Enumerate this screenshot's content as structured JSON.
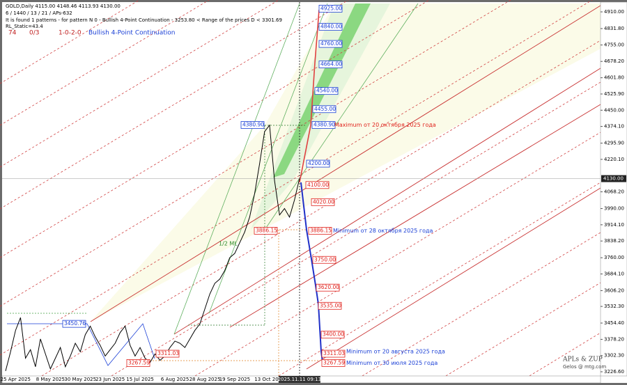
{
  "chart_data": {
    "type": "line",
    "title": "GOLD,Daily  4115.00 4148.46 4113.93 4130.00",
    "subtitle": "6 / 1440 / 13 / 21 / APs-632",
    "info_line": "It is found 1 patterns  -  for pattern N 0  -  Bullish 4-Point Continuation  -  3253.80 < Range of the prices D < 3301.69",
    "static_line": "RL_Static=43.4",
    "status": [
      "74",
      "0/3",
      "1-0-2-0",
      "Bullish 4-Point Continuation"
    ],
    "median_label": "1/2 ML",
    "watermark": [
      "APLs & ZUP",
      "Gelos @ mtg.com"
    ],
    "color": "#000000",
    "categories": [
      null,
      null,
      "25 Apr 2025",
      null,
      null,
      null,
      null,
      null,
      null,
      "8 May 2025",
      null,
      null,
      null,
      null,
      null,
      "30 May 2025",
      null,
      null,
      null,
      null,
      null,
      "23 Jun 2025",
      null,
      null,
      null,
      null,
      null,
      "15 Jul 2025",
      null,
      null,
      null,
      null,
      null,
      null,
      "6 Aug 2025",
      null,
      null,
      null,
      null,
      null,
      "28 Aug 2025",
      null,
      null,
      null,
      null,
      null,
      "19 Sep 2025",
      null,
      null,
      null,
      null,
      null,
      null,
      "13 Oct 2025",
      null,
      null,
      null,
      null,
      null,
      "2025.11.11 09:13"
    ],
    "values": [
      3230,
      3320,
      3420,
      3480,
      3290,
      3330,
      3250,
      3380,
      3310,
      3240,
      3290,
      3340,
      3250,
      3300,
      3360,
      3320,
      3400,
      3440,
      3390,
      3350,
      3300,
      3330,
      3360,
      3410,
      3440,
      3350,
      3300,
      3340,
      3290,
      3270,
      3310,
      3280,
      3300,
      3340,
      3370,
      3360,
      3340,
      3380,
      3420,
      3450,
      3520,
      3590,
      3640,
      3660,
      3700,
      3760,
      3780,
      3830,
      3880,
      3950,
      4060,
      4200,
      4350,
      4380,
      4120,
      3960,
      3990,
      3950,
      4030,
      4130
    ],
    "ylim": [
      3207,
      4955.7
    ],
    "yticks": [
      {
        "value": 4910,
        "label": "4910.00"
      },
      {
        "value": 4831.8,
        "label": "4831.80"
      },
      {
        "value": 4755,
        "label": "4755.00"
      },
      {
        "value": 4678.2,
        "label": "4678.20"
      },
      {
        "value": 4601.8,
        "label": "4601.80"
      },
      {
        "value": 4525.9,
        "label": "4525.90"
      },
      {
        "value": 4450,
        "label": "4450.00"
      },
      {
        "value": 4374.1,
        "label": "4374.10"
      },
      {
        "value": 4295.9,
        "label": "4295.90"
      },
      {
        "value": 4220.1,
        "label": "4220.10"
      },
      {
        "value": 4068.2,
        "label": "4068.20"
      },
      {
        "value": 3990,
        "label": "3990.00"
      },
      {
        "value": 3914.1,
        "label": "3914.10"
      },
      {
        "value": 3838.2,
        "label": "3838.20"
      },
      {
        "value": 3760,
        "label": "3760.00"
      },
      {
        "value": 3684.1,
        "label": "3684.10"
      },
      {
        "value": 3606.2,
        "label": "3606.20"
      },
      {
        "value": 3532.3,
        "label": "3532.30"
      },
      {
        "value": 3454.4,
        "label": "3454.40"
      },
      {
        "value": 3378.2,
        "label": "3378.20"
      },
      {
        "value": 3302.3,
        "label": "3302.30"
      },
      {
        "value": 3226.6,
        "label": "3226.60"
      }
    ],
    "last_price": {
      "value": 4130,
      "label": "4130.00"
    },
    "levels": [
      {
        "value": 4925,
        "label": "4925.00",
        "color": "#1a3fd6"
      },
      {
        "value": 4840,
        "label": "4840.00",
        "color": "#1a3fd6"
      },
      {
        "value": 4760,
        "label": "4760.00",
        "color": "#1a3fd6"
      },
      {
        "value": 4664,
        "label": "4664.00",
        "color": "#1a3fd6"
      },
      {
        "value": 4540,
        "label": "4540.00",
        "color": "#1a3fd6"
      },
      {
        "value": 4455,
        "label": "4455.00",
        "color": "#1a3fd6"
      },
      {
        "value": 4380.9,
        "label": "4380.90",
        "color": "#1a3fd6"
      },
      {
        "value": 4200,
        "label": "4200.00",
        "color": "#1a3fd6"
      },
      {
        "value": 4380.9,
        "label": "4380.90",
        "color": "#1a3fd6"
      },
      {
        "value": 4100,
        "label": "4100.00",
        "color": "#e0201a"
      },
      {
        "value": 4020,
        "label": "4020.00",
        "color": "#e0201a"
      },
      {
        "value": 3886.15,
        "label": "3886.15",
        "color": "#e0201a"
      },
      {
        "value": 3886.15,
        "label": "3886.15",
        "color": "#e0201a"
      },
      {
        "value": 3750,
        "label": "3750.00",
        "color": "#e0201a"
      },
      {
        "value": 3620,
        "label": "3620.00",
        "color": "#e0201a"
      },
      {
        "value": 3535,
        "label": "3535.00",
        "color": "#e0201a"
      },
      {
        "value": 3400,
        "label": "3400.00",
        "color": "#e0201a"
      },
      {
        "value": 3311.03,
        "label": "3311.03",
        "color": "#e0201a"
      },
      {
        "value": 3267.59,
        "label": "3267.59",
        "color": "#e0201a"
      },
      {
        "value": 3450.76,
        "label": "3450.76",
        "color": "#1a3fd6"
      },
      {
        "value": 3267.59,
        "label": "3267.59",
        "color": "#e0201a"
      },
      {
        "value": 3311.03,
        "label": "3311.03",
        "color": "#e0201a"
      }
    ],
    "notes": [
      {
        "text": "Maximum от 20 октября 2025 года",
        "color": "#e0201a"
      },
      {
        "text": "Minimum от 28 октября 2025 года",
        "color": "#1a3fd6"
      },
      {
        "text": "Minimum от 20 августа 2025 года",
        "color": "#1a3fd6"
      },
      {
        "text": "Minimum от 30 июля 2025 года",
        "color": "#1a3fd6"
      }
    ]
  }
}
